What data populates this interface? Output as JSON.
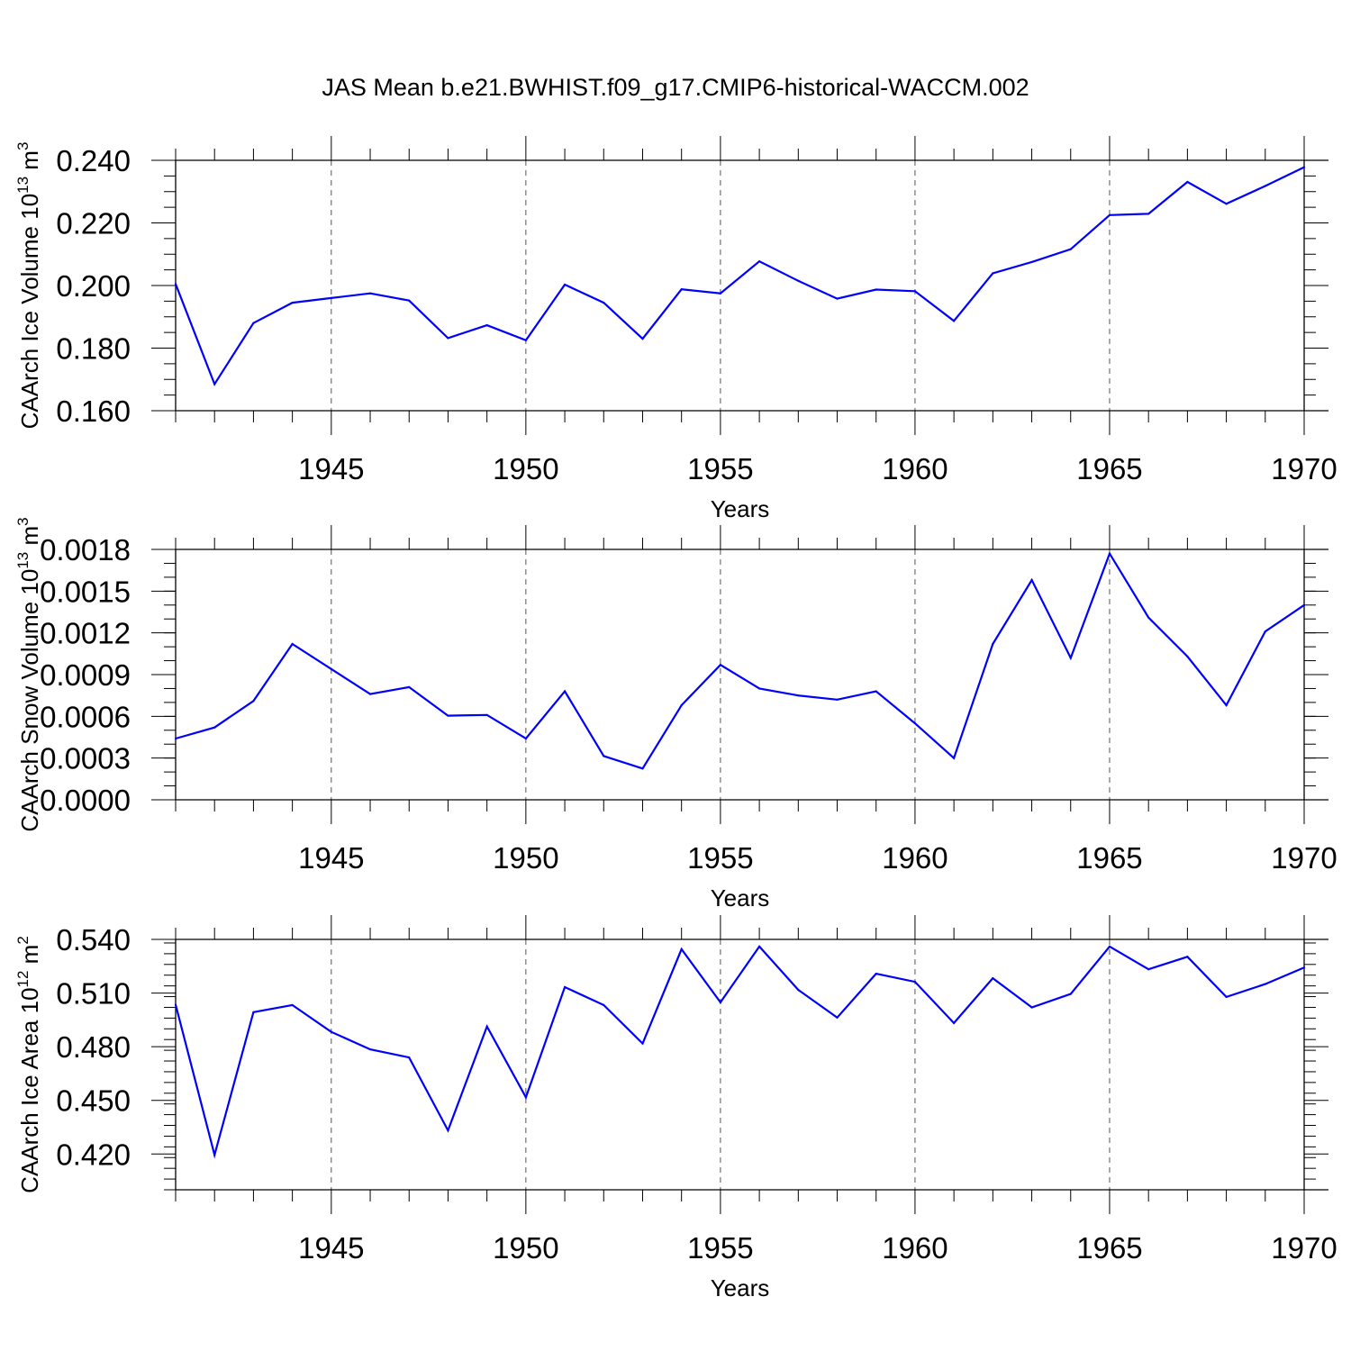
{
  "title": "JAS Mean b.e21.BWHIST.f09_g17.CMIP6-historical-WACCM.002",
  "colors": {
    "line": "#0000ff",
    "axis": "#000000",
    "grid": "#555555"
  },
  "chart_data": [
    {
      "type": "line",
      "ylabel": {
        "main": "CAArch Ice Volume 10",
        "exp": "13",
        "unit": " m",
        "unit_exp": "3"
      },
      "xlabel": "Years",
      "xlim": [
        1941,
        1970
      ],
      "ylim": [
        0.16,
        0.24
      ],
      "x_ticks": [
        1945,
        1950,
        1955,
        1960,
        1965,
        1970
      ],
      "y_ticks": [
        0.16,
        0.18,
        0.2,
        0.22,
        0.24
      ],
      "y_tick_labels": [
        "0.160",
        "0.180",
        "0.200",
        "0.220",
        "0.240"
      ],
      "y_minor_step": 0.005,
      "grid": "vertical dashed at x ticks",
      "x": [
        1941,
        1942,
        1943,
        1944,
        1945,
        1946,
        1947,
        1948,
        1949,
        1950,
        1951,
        1952,
        1953,
        1954,
        1955,
        1956,
        1957,
        1958,
        1959,
        1960,
        1961,
        1962,
        1963,
        1964,
        1965,
        1966,
        1967,
        1968,
        1969,
        1970
      ],
      "values": [
        0.2005,
        0.1685,
        0.188,
        0.1945,
        0.196,
        0.1975,
        0.1952,
        0.1832,
        0.1873,
        0.1825,
        0.2003,
        0.1945,
        0.183,
        0.1988,
        0.1975,
        0.2077,
        0.2015,
        0.1958,
        0.1987,
        0.1982,
        0.1887,
        0.2039,
        0.2075,
        0.2116,
        0.2225,
        0.2229,
        0.2331,
        0.2261,
        0.2318,
        0.2378
      ]
    },
    {
      "type": "line",
      "ylabel": {
        "main": "CAArch Snow Volume 10",
        "exp": "13",
        "unit": " m",
        "unit_exp": "3"
      },
      "xlabel": "Years",
      "xlim": [
        1941,
        1970
      ],
      "ylim": [
        0,
        0.0018
      ],
      "x_ticks": [
        1945,
        1950,
        1955,
        1960,
        1965,
        1970
      ],
      "y_ticks": [
        0,
        0.0003,
        0.0006,
        0.0009,
        0.0012,
        0.0015,
        0.0018
      ],
      "y_tick_labels": [
        "0.0000",
        "0.0003",
        "0.0006",
        "0.0009",
        "0.0012",
        "0.0015",
        "0.0018"
      ],
      "y_minor_step": 0.0001,
      "grid": "vertical dashed at x ticks",
      "x": [
        1941,
        1942,
        1943,
        1944,
        1945,
        1946,
        1947,
        1948,
        1949,
        1950,
        1951,
        1952,
        1953,
        1954,
        1955,
        1956,
        1957,
        1958,
        1959,
        1960,
        1961,
        1962,
        1963,
        1964,
        1965,
        1966,
        1967,
        1968,
        1969,
        1970
      ],
      "values": [
        0.00044,
        0.00052,
        0.00071,
        0.00112,
        0.00094,
        0.00076,
        0.00081,
        0.000605,
        0.00061,
        0.00044,
        0.00078,
        0.000315,
        0.000225,
        0.00068,
        0.00097,
        0.0008,
        0.00075,
        0.00072,
        0.00078,
        0.00055,
        0.0003,
        0.00112,
        0.00158,
        0.00102,
        0.00177,
        0.00131,
        0.00103,
        0.00068,
        0.00121,
        0.0014
      ]
    },
    {
      "type": "line",
      "ylabel": {
        "main": "CAArch Ice Area 10",
        "exp": "12",
        "unit": " m",
        "unit_exp": "2"
      },
      "xlabel": "Years",
      "xlim": [
        1941,
        1970
      ],
      "ylim": [
        0.4,
        0.54
      ],
      "x_ticks": [
        1945,
        1950,
        1955,
        1960,
        1965,
        1970
      ],
      "y_ticks": [
        0.42,
        0.45,
        0.48,
        0.51,
        0.54
      ],
      "y_tick_labels": [
        "0.420",
        "0.450",
        "0.480",
        "0.510",
        "0.540"
      ],
      "y_minor_step": 0.006,
      "grid": "vertical dashed at x ticks",
      "x": [
        1941,
        1942,
        1943,
        1944,
        1945,
        1946,
        1947,
        1948,
        1949,
        1950,
        1951,
        1952,
        1953,
        1954,
        1955,
        1956,
        1957,
        1958,
        1959,
        1960,
        1961,
        1962,
        1963,
        1964,
        1965,
        1966,
        1967,
        1968,
        1969,
        1970
      ],
      "values": [
        0.5035,
        0.4195,
        0.4993,
        0.5033,
        0.4883,
        0.4785,
        0.474,
        0.4332,
        0.4913,
        0.4517,
        0.5133,
        0.5033,
        0.4818,
        0.5345,
        0.5048,
        0.536,
        0.5118,
        0.4963,
        0.5208,
        0.5163,
        0.4932,
        0.5183,
        0.502,
        0.5095,
        0.536,
        0.5233,
        0.5303,
        0.5078,
        0.515,
        0.5243
      ]
    }
  ]
}
